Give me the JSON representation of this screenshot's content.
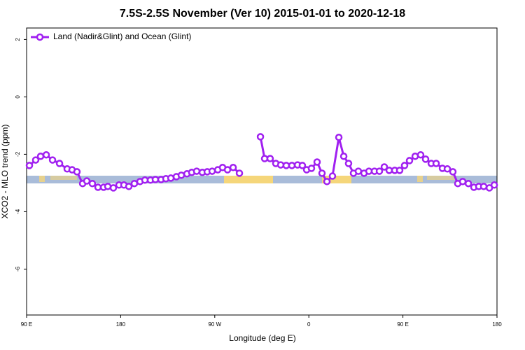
{
  "chart_data": {
    "type": "line",
    "title": "7.5S-2.5S November (Ver 10)   2015-01-01 to 2020-12-18",
    "x_label": "Longitude (deg E)",
    "y_label": "XCO2 - MLO trend (ppm)",
    "xlim": [
      90,
      540
    ],
    "ylim": [
      -7.6,
      2.4
    ],
    "xticks": [
      {
        "value": 90,
        "label": "90 E"
      },
      180,
      {
        "value": 270,
        "label": "90 W"
      },
      {
        "value": 360,
        "label": "0"
      },
      {
        "value": 450,
        "label": "90 E"
      },
      {
        "value": 540,
        "label": "180"
      }
    ],
    "yticks": [
      -6,
      -4,
      -2,
      0,
      2
    ],
    "legend": "top-left",
    "x": [
      92.7,
      98.7,
      103.4,
      108.8,
      114.8,
      121.5,
      128.8,
      133.5,
      138.2,
      143.6,
      147.6,
      152.9,
      158.3,
      163.7,
      167.7,
      173.0,
      178.4,
      183.1,
      187.8,
      193.1,
      198.5,
      203.2,
      208.5,
      213.2,
      218.6,
      223.3,
      228.0,
      233.3,
      238.0,
      243.4,
      248.0,
      252.7,
      258.1,
      262.8,
      267.5,
      272.9,
      277.5,
      282.2,
      287.6,
      293.6,
      303,
      313.7,
      317.7,
      323.0,
      328.4,
      333.1,
      338.4,
      343.8,
      349.2,
      353.8,
      357.9,
      362.5,
      367.9,
      372.6,
      377.3,
      382.6,
      388.7,
      393.4,
      398.0,
      402.7,
      407.4,
      412.8,
      417.5,
      422.8,
      427.5,
      432.2,
      436.9,
      442.2,
      446.9,
      451.6,
      456.3,
      461.7,
      467.0,
      471.7,
      477.1,
      481.8,
      487.8,
      492.5,
      497.8,
      502.5,
      507.2,
      512.6,
      517.9,
      522.6,
      527.3,
      532.7,
      537.4
    ],
    "series": [
      {
        "name": "Land (Nadir&Glint) and Ocean (Glint)",
        "color": "#a020f0",
        "values": [
          -2.39,
          -2.2,
          -2.07,
          -2.02,
          -2.2,
          -2.32,
          -2.51,
          -2.54,
          -2.61,
          -3.02,
          -2.93,
          -3.02,
          -3.15,
          -3.15,
          -3.12,
          -3.17,
          -3.07,
          -3.07,
          -3.12,
          -3.02,
          -2.95,
          -2.9,
          -2.9,
          -2.88,
          -2.88,
          -2.85,
          -2.83,
          -2.78,
          -2.73,
          -2.68,
          -2.63,
          -2.59,
          -2.63,
          -2.61,
          -2.59,
          -2.54,
          -2.46,
          -2.54,
          -2.46,
          -2.66,
          null,
          -1.39,
          -2.15,
          -2.15,
          -2.32,
          -2.37,
          -2.39,
          -2.39,
          -2.37,
          -2.39,
          -2.54,
          -2.49,
          -2.27,
          -2.66,
          -2.95,
          -2.76,
          -1.41,
          -2.07,
          -2.32,
          -2.66,
          -2.59,
          -2.66,
          -2.59,
          -2.59,
          -2.59,
          -2.44,
          -2.56,
          -2.56,
          -2.56,
          -2.39,
          -2.22,
          -2.07,
          -2.02,
          -2.17,
          -2.32,
          -2.32,
          -2.49,
          -2.51,
          -2.61,
          -3.02,
          -2.95,
          -3.02,
          -3.15,
          -3.12,
          -3.12,
          -3.17,
          -3.07
        ]
      }
    ]
  }
}
